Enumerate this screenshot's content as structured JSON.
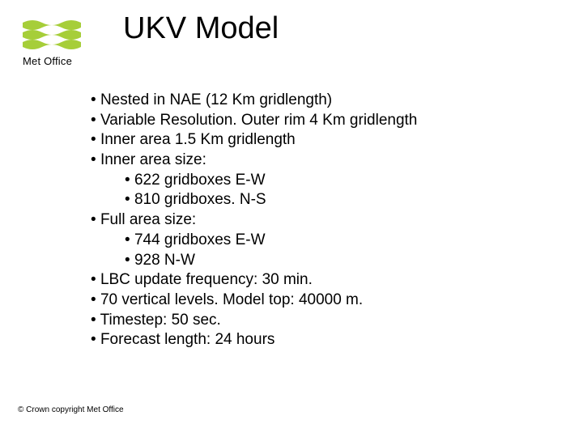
{
  "logo": {
    "text": "Met Office",
    "wave_color": "#a6ce39",
    "bg_color": "#ffffff"
  },
  "title": "UKV Model",
  "bullets": [
    {
      "text": "Nested in NAE  (12 Km gridlength)"
    },
    {
      "text": "Variable Resolution. Outer rim 4 Km gridlength"
    },
    {
      "text": "Inner area 1.5 Km gridlength"
    },
    {
      "text": "Inner area size:",
      "sub": [
        {
          "text": "622 gridboxes E-W"
        },
        {
          "text": "810 gridboxes. N-S"
        }
      ]
    },
    {
      "text": "Full area size:",
      "sub": [
        {
          "text": "744 gridboxes E-W"
        },
        {
          "text": "928 N-W"
        }
      ]
    },
    {
      "text": "LBC update frequency: 30 min."
    },
    {
      "text": "70 vertical levels. Model top: 40000 m."
    },
    {
      "text": "Timestep: 50 sec."
    },
    {
      "text": "Forecast length: 24 hours"
    }
  ],
  "footer": "© Crown copyright   Met Office",
  "styles": {
    "title_fontsize": 38,
    "body_fontsize": 19,
    "footer_fontsize": 10,
    "text_color": "#000000",
    "background_color": "#ffffff"
  }
}
